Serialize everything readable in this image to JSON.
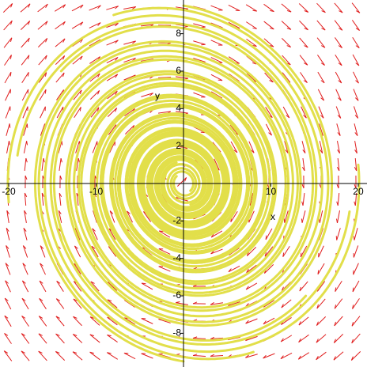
{
  "chart_data": {
    "type": "phase-portrait",
    "x_label": "x",
    "y_label": "y",
    "xlim": [
      -21,
      21
    ],
    "ylim": [
      -9.8,
      9.8
    ],
    "xticks": [
      -20,
      -10,
      10,
      20
    ],
    "yticks": [
      -8,
      -6,
      -4,
      -2,
      2,
      4,
      6,
      8
    ],
    "field_color": "#e02020",
    "trajectory_color": "#e2df4a",
    "axis_color": "#000000"
  }
}
